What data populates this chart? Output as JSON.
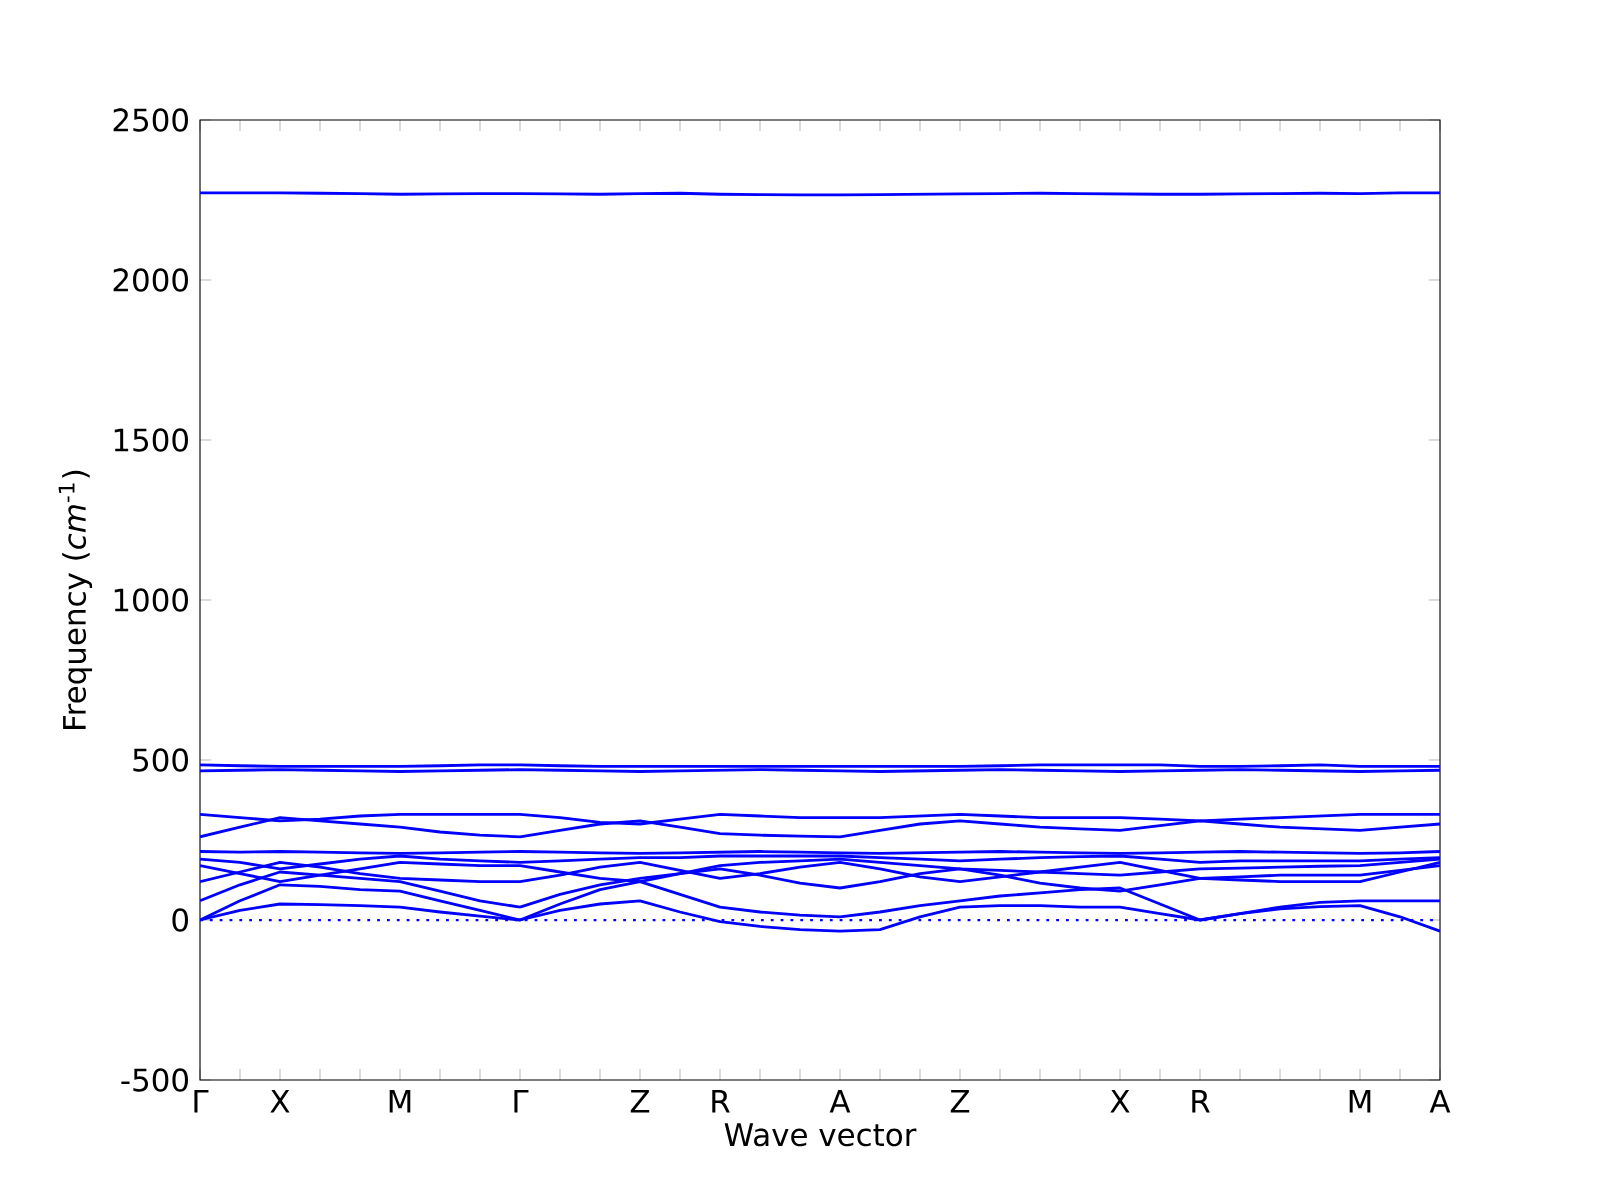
{
  "chart_data": {
    "type": "line",
    "xlabel": "Wave vector",
    "ylabel": "Frequency (*cm*$^{-1}$)",
    "categories": [
      "Γ",
      null,
      "X",
      null,
      null,
      "M",
      null,
      null,
      "Γ",
      null,
      null,
      "Z",
      null,
      "R",
      null,
      null,
      "A",
      null,
      null,
      "Z",
      null,
      null,
      null,
      "X",
      null,
      "R",
      null,
      null,
      null,
      "M",
      null,
      "A"
    ],
    "ylim": [
      -500,
      2500
    ],
    "yticks": [
      -500,
      0,
      500,
      1000,
      1500,
      2000,
      2500
    ],
    "ref_lines": [
      {
        "axis": "y",
        "value": 0,
        "color": "#0000ff",
        "line_style": "dotted"
      }
    ],
    "series": [
      {
        "color": "#0000ff",
        "values": [
          0,
          30,
          50,
          48,
          45,
          40,
          25,
          12,
          0,
          30,
          50,
          60,
          25,
          -5,
          -20,
          -30,
          -35,
          -30,
          10,
          40,
          45,
          45,
          40,
          40,
          20,
          0,
          20,
          35,
          42,
          45,
          10,
          -35
        ]
      },
      {
        "color": "#0000ff",
        "values": [
          0,
          60,
          110,
          105,
          95,
          90,
          60,
          30,
          0,
          50,
          95,
          120,
          80,
          40,
          25,
          15,
          10,
          25,
          45,
          60,
          75,
          85,
          95,
          100,
          50,
          0,
          20,
          40,
          55,
          60,
          60,
          60
        ]
      },
      {
        "color": "#0000ff",
        "values": [
          60,
          110,
          150,
          140,
          130,
          120,
          90,
          60,
          40,
          80,
          110,
          130,
          145,
          160,
          140,
          115,
          100,
          120,
          145,
          160,
          140,
          115,
          100,
          90,
          110,
          130,
          135,
          140,
          140,
          140,
          155,
          170
        ]
      },
      {
        "color": "#0000ff",
        "values": [
          120,
          150,
          180,
          165,
          145,
          130,
          125,
          120,
          120,
          140,
          165,
          180,
          155,
          130,
          145,
          165,
          180,
          160,
          135,
          120,
          135,
          150,
          165,
          180,
          155,
          130,
          125,
          120,
          120,
          120,
          150,
          180
        ]
      },
      {
        "color": "#0000ff",
        "values": [
          170,
          145,
          120,
          140,
          160,
          180,
          175,
          170,
          170,
          150,
          130,
          120,
          145,
          170,
          180,
          185,
          190,
          180,
          170,
          160,
          155,
          150,
          145,
          140,
          150,
          160,
          162,
          165,
          168,
          170,
          180,
          190
        ]
      },
      {
        "color": "#0000ff",
        "values": [
          190,
          180,
          160,
          175,
          190,
          200,
          190,
          185,
          180,
          185,
          190,
          195,
          195,
          200,
          200,
          200,
          200,
          195,
          190,
          185,
          190,
          195,
          198,
          200,
          190,
          180,
          185,
          185,
          185,
          185,
          190,
          195
        ]
      },
      {
        "color": "#0000ff",
        "values": [
          214,
          212,
          214,
          212,
          210,
          208,
          210,
          212,
          214,
          212,
          210,
          208,
          210,
          212,
          214,
          212,
          210,
          208,
          210,
          212,
          214,
          212,
          210,
          208,
          210,
          212,
          214,
          212,
          210,
          208,
          210,
          214
        ]
      },
      {
        "color": "#0000ff",
        "values": [
          260,
          290,
          320,
          310,
          300,
          290,
          275,
          265,
          260,
          280,
          300,
          310,
          290,
          270,
          265,
          262,
          260,
          280,
          300,
          310,
          300,
          290,
          285,
          280,
          295,
          310,
          300,
          290,
          285,
          280,
          290,
          300
        ]
      },
      {
        "color": "#0000ff",
        "values": [
          330,
          320,
          310,
          315,
          325,
          330,
          330,
          330,
          330,
          320,
          305,
          300,
          315,
          330,
          325,
          320,
          320,
          320,
          325,
          330,
          325,
          320,
          320,
          320,
          315,
          310,
          315,
          320,
          325,
          330,
          330,
          330
        ]
      },
      {
        "color": "#0000ff",
        "values": [
          466,
          468,
          470,
          468,
          466,
          464,
          466,
          468,
          470,
          468,
          466,
          464,
          466,
          468,
          470,
          468,
          466,
          464,
          466,
          468,
          470,
          468,
          466,
          464,
          466,
          468,
          470,
          468,
          466,
          464,
          466,
          468
        ]
      },
      {
        "color": "#0000ff",
        "values": [
          485,
          482,
          480,
          480,
          480,
          480,
          482,
          485,
          485,
          482,
          480,
          480,
          480,
          480,
          480,
          480,
          480,
          480,
          480,
          480,
          482,
          485,
          485,
          485,
          485,
          480,
          480,
          482,
          485,
          480,
          480,
          480
        ]
      },
      {
        "color": "#0000ff",
        "values": [
          2272,
          2272,
          2272,
          2271,
          2270,
          2268,
          2269,
          2270,
          2270,
          2269,
          2268,
          2270,
          2271,
          2268,
          2267,
          2266,
          2266,
          2267,
          2268,
          2269,
          2270,
          2271,
          2270,
          2269,
          2268,
          2268,
          2269,
          2270,
          2271,
          2270,
          2272,
          2272
        ]
      }
    ]
  }
}
